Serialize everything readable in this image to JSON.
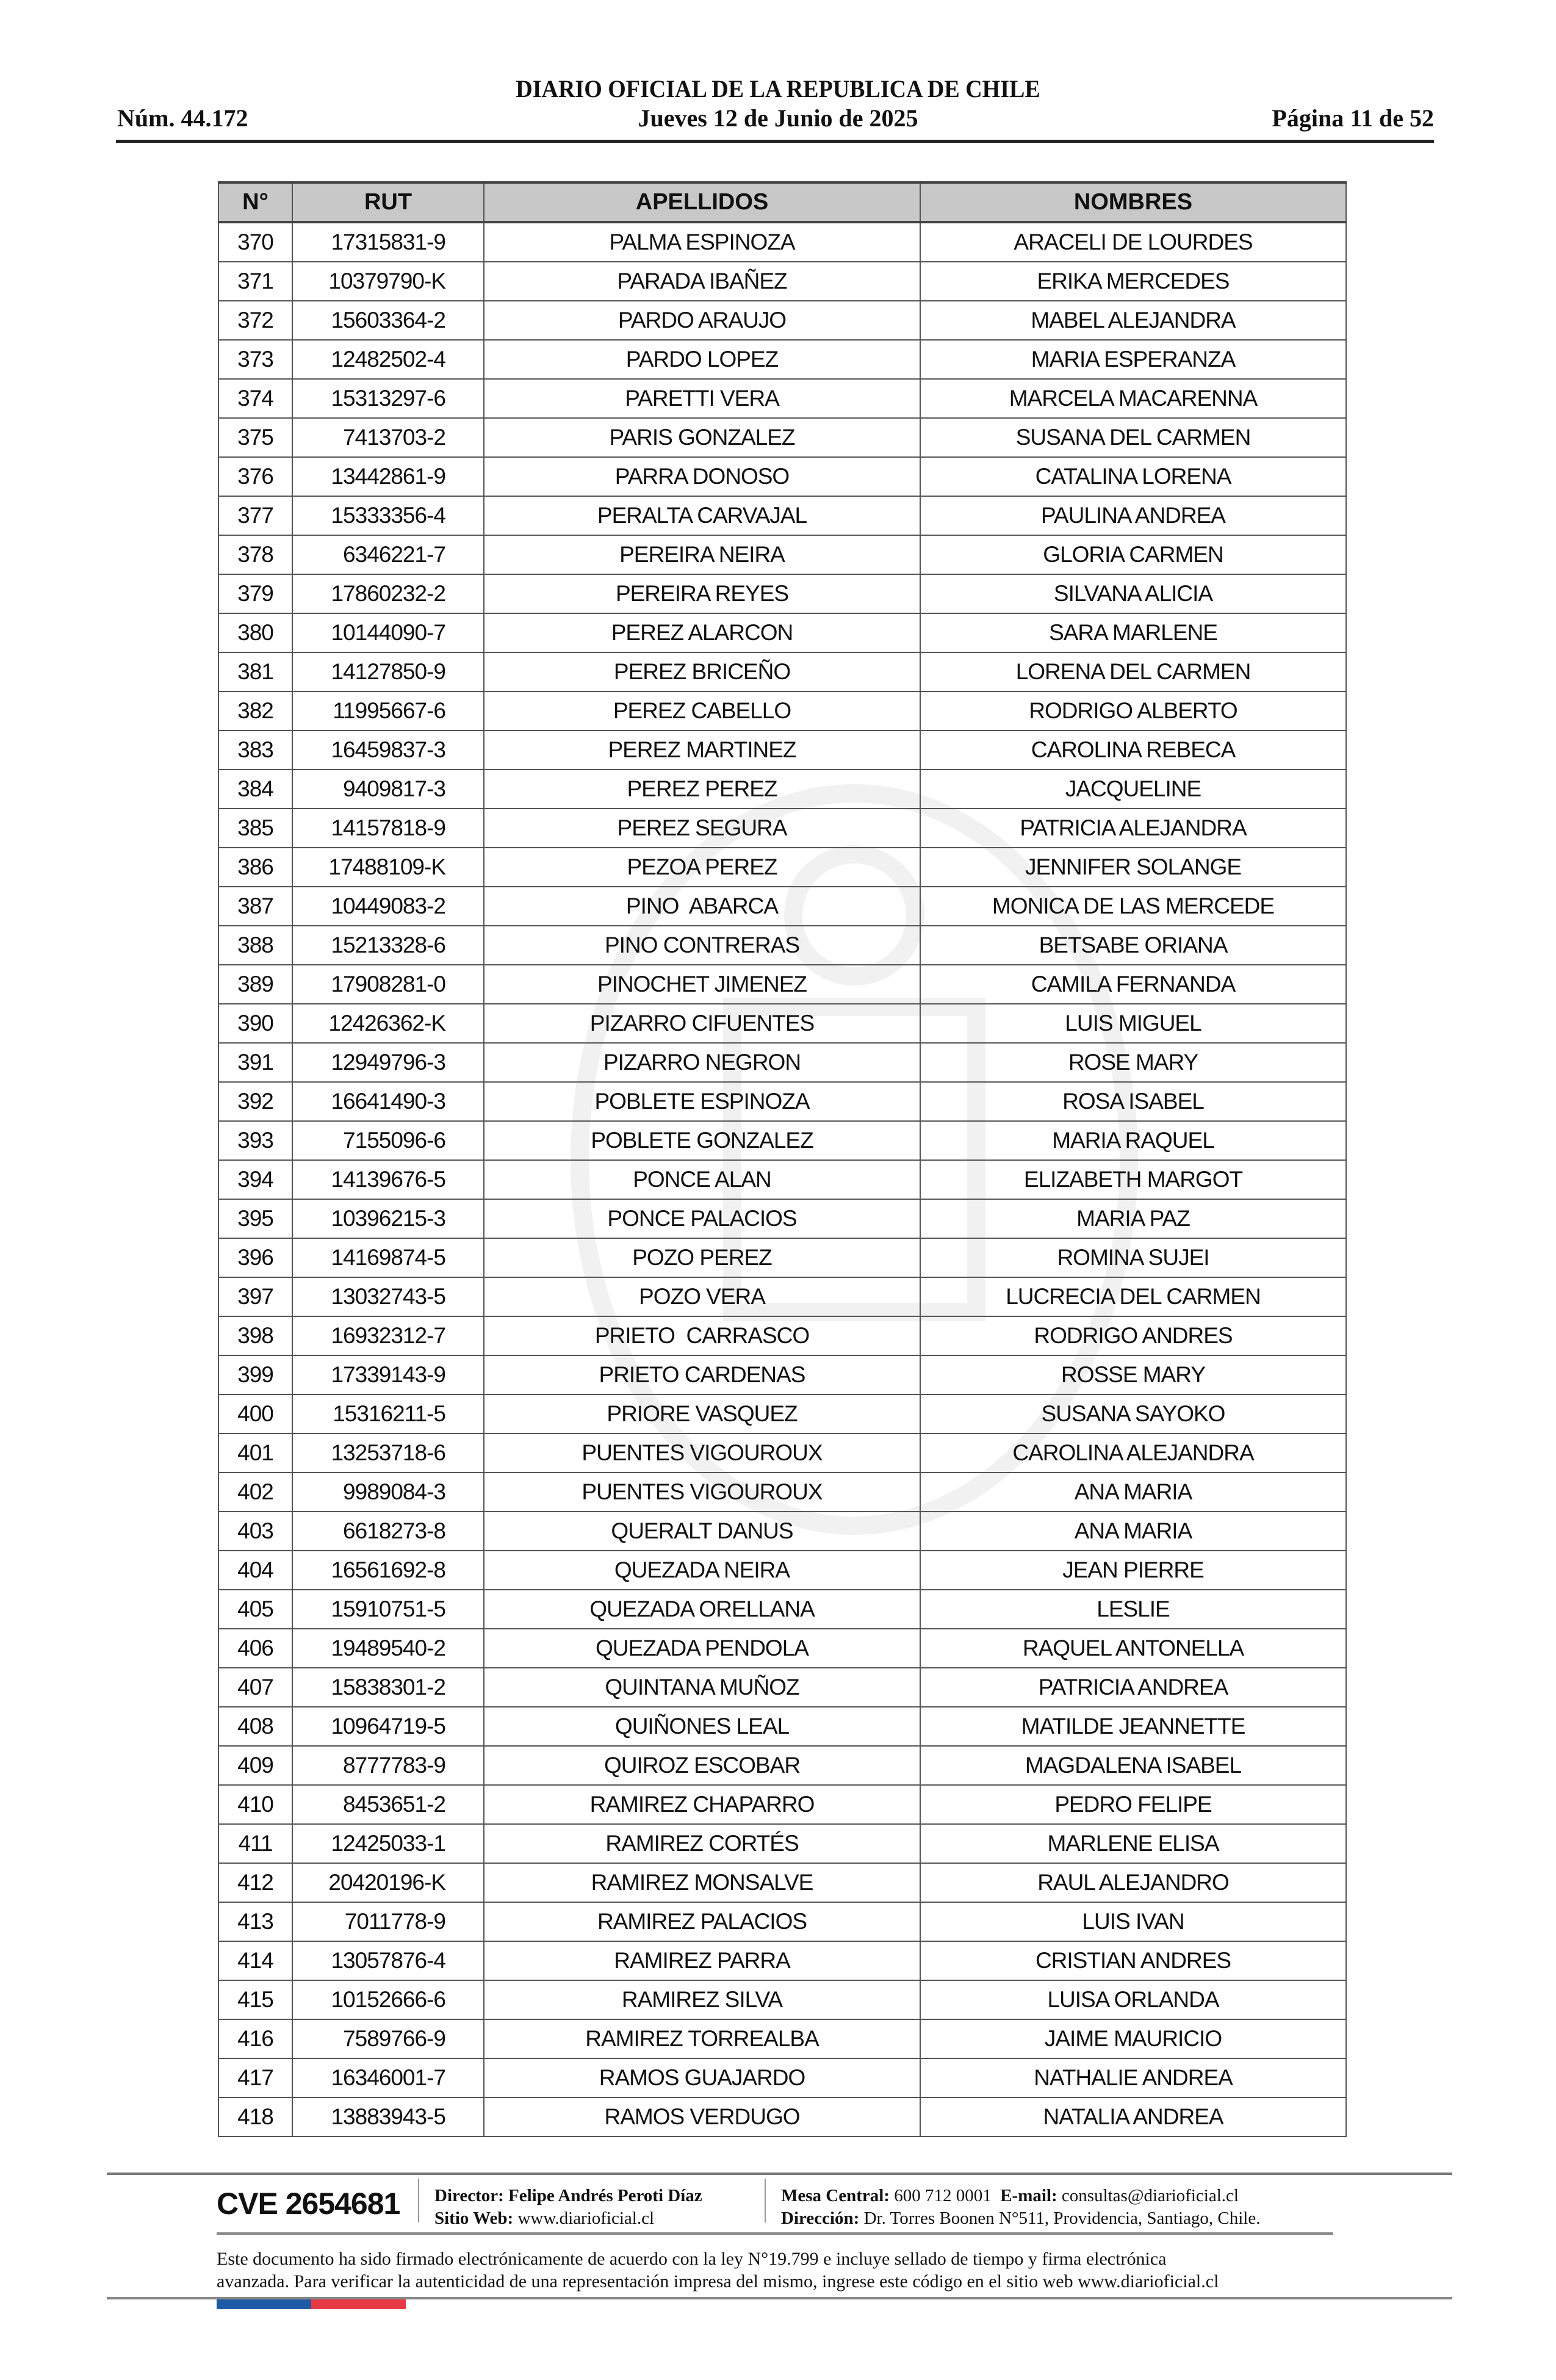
{
  "header": {
    "title": "DIARIO OFICIAL DE LA REPUBLICA DE CHILE",
    "number": "Núm. 44.172",
    "date": "Jueves 12 de Junio de 2025",
    "page": "Página 11 de 52"
  },
  "table": {
    "columns": [
      "N°",
      "RUT",
      "APELLIDOS",
      "NOMBRES"
    ],
    "rows": [
      [
        "370",
        "17315831-9",
        "PALMA ESPINOZA",
        "ARACELI DE LOURDES"
      ],
      [
        "371",
        "10379790-K",
        "PARADA IBAÑEZ",
        "ERIKA MERCEDES"
      ],
      [
        "372",
        "15603364-2",
        "PARDO ARAUJO",
        "MABEL ALEJANDRA"
      ],
      [
        "373",
        "12482502-4",
        "PARDO LOPEZ",
        "MARIA ESPERANZA"
      ],
      [
        "374",
        "15313297-6",
        "PARETTI VERA",
        "MARCELA MACARENNA"
      ],
      [
        "375",
        "7413703-2",
        "PARIS GONZALEZ",
        "SUSANA DEL CARMEN"
      ],
      [
        "376",
        "13442861-9",
        "PARRA DONOSO",
        "CATALINA LORENA"
      ],
      [
        "377",
        "15333356-4",
        "PERALTA CARVAJAL",
        "PAULINA ANDREA"
      ],
      [
        "378",
        "6346221-7",
        "PEREIRA NEIRA",
        "GLORIA CARMEN"
      ],
      [
        "379",
        "17860232-2",
        "PEREIRA REYES",
        "SILVANA ALICIA"
      ],
      [
        "380",
        "10144090-7",
        "PEREZ ALARCON",
        "SARA MARLENE"
      ],
      [
        "381",
        "14127850-9",
        "PEREZ BRICEÑO",
        "LORENA DEL CARMEN"
      ],
      [
        "382",
        "11995667-6",
        "PEREZ CABELLO",
        "RODRIGO ALBERTO"
      ],
      [
        "383",
        "16459837-3",
        "PEREZ MARTINEZ",
        "CAROLINA REBECA"
      ],
      [
        "384",
        "9409817-3",
        "PEREZ PEREZ",
        "JACQUELINE"
      ],
      [
        "385",
        "14157818-9",
        "PEREZ SEGURA",
        "PATRICIA ALEJANDRA"
      ],
      [
        "386",
        "17488109-K",
        "PEZOA PEREZ",
        "JENNIFER SOLANGE"
      ],
      [
        "387",
        "10449083-2",
        "PINO  ABARCA",
        "MONICA DE LAS MERCEDE"
      ],
      [
        "388",
        "15213328-6",
        "PINO CONTRERAS",
        "BETSABE ORIANA"
      ],
      [
        "389",
        "17908281-0",
        "PINOCHET JIMENEZ",
        "CAMILA FERNANDA"
      ],
      [
        "390",
        "12426362-K",
        "PIZARRO CIFUENTES",
        "LUIS MIGUEL"
      ],
      [
        "391",
        "12949796-3",
        "PIZARRO NEGRON",
        "ROSE MARY"
      ],
      [
        "392",
        "16641490-3",
        "POBLETE ESPINOZA",
        "ROSA ISABEL"
      ],
      [
        "393",
        "7155096-6",
        "POBLETE GONZALEZ",
        "MARIA RAQUEL"
      ],
      [
        "394",
        "14139676-5",
        "PONCE ALAN",
        "ELIZABETH MARGOT"
      ],
      [
        "395",
        "10396215-3",
        "PONCE PALACIOS",
        "MARIA PAZ"
      ],
      [
        "396",
        "14169874-5",
        "POZO PEREZ",
        "ROMINA SUJEI"
      ],
      [
        "397",
        "13032743-5",
        "POZO VERA",
        "LUCRECIA DEL CARMEN"
      ],
      [
        "398",
        "16932312-7",
        "PRIETO  CARRASCO",
        "RODRIGO ANDRES"
      ],
      [
        "399",
        "17339143-9",
        "PRIETO CARDENAS",
        "ROSSE MARY"
      ],
      [
        "400",
        "15316211-5",
        "PRIORE VASQUEZ",
        "SUSANA SAYOKO"
      ],
      [
        "401",
        "13253718-6",
        "PUENTES VIGOUROUX",
        "CAROLINA ALEJANDRA"
      ],
      [
        "402",
        "9989084-3",
        "PUENTES VIGOUROUX",
        "ANA MARIA"
      ],
      [
        "403",
        "6618273-8",
        "QUERALT DANUS",
        "ANA MARIA"
      ],
      [
        "404",
        "16561692-8",
        "QUEZADA NEIRA",
        "JEAN PIERRE"
      ],
      [
        "405",
        "15910751-5",
        "QUEZADA ORELLANA",
        "LESLIE"
      ],
      [
        "406",
        "19489540-2",
        "QUEZADA PENDOLA",
        "RAQUEL ANTONELLA"
      ],
      [
        "407",
        "15838301-2",
        "QUINTANA MUÑOZ",
        "PATRICIA ANDREA"
      ],
      [
        "408",
        "10964719-5",
        "QUIÑONES LEAL",
        "MATILDE JEANNETTE"
      ],
      [
        "409",
        "8777783-9",
        "QUIROZ ESCOBAR",
        "MAGDALENA ISABEL"
      ],
      [
        "410",
        "8453651-2",
        "RAMIREZ CHAPARRO",
        "PEDRO FELIPE"
      ],
      [
        "411",
        "12425033-1",
        "RAMIREZ CORTÉS",
        "MARLENE ELISA"
      ],
      [
        "412",
        "20420196-K",
        "RAMIREZ MONSALVE",
        "RAUL ALEJANDRO"
      ],
      [
        "413",
        "7011778-9",
        "RAMIREZ PALACIOS",
        "LUIS IVAN"
      ],
      [
        "414",
        "13057876-4",
        "RAMIREZ PARRA",
        "CRISTIAN ANDRES"
      ],
      [
        "415",
        "10152666-6",
        "RAMIREZ SILVA",
        "LUISA ORLANDA"
      ],
      [
        "416",
        "7589766-9",
        "RAMIREZ TORREALBA",
        "JAIME MAURICIO"
      ],
      [
        "417",
        "16346001-7",
        "RAMOS GUAJARDO",
        "NATHALIE ANDREA"
      ],
      [
        "418",
        "13883943-5",
        "RAMOS VERDUGO",
        "NATALIA ANDREA"
      ]
    ]
  },
  "footer": {
    "cve": "CVE 2654681",
    "director_label": "Director:",
    "director": "Felipe Andrés Peroti Díaz",
    "web_label": "Sitio Web:",
    "web": "www.diarioficial.cl",
    "phone_label": "Mesa Central:",
    "phone": "600 712 0001",
    "email_label": "E-mail:",
    "email": "consultas@diarioficial.cl",
    "address_label": "Dirección:",
    "address": "Dr. Torres Boonen N°511, Providencia, Santiago, Chile.",
    "legal_1": "Este documento ha sido firmado electrónicamente de acuerdo con la ley N°19.799 e incluye sellado de tiempo y firma electrónica",
    "legal_2": "avanzada. Para verificar la autenticidad de una representación impresa del mismo, ingrese este código en el sitio web www.diarioficial.cl",
    "flag_colors": [
      "#1f5aa6",
      "#e83a45"
    ]
  }
}
